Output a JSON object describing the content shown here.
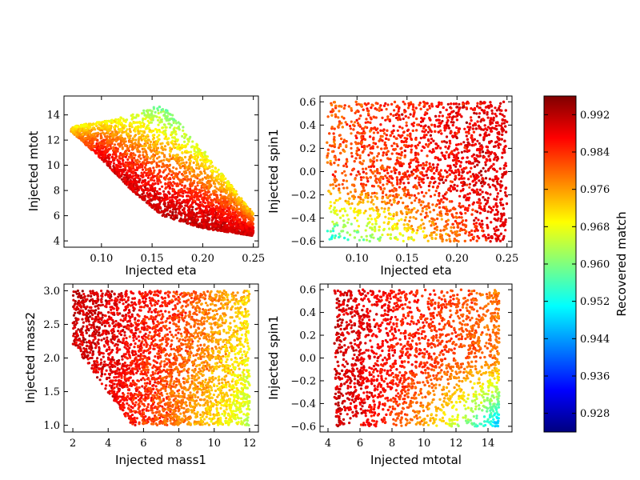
{
  "chart_data": [
    {
      "type": "scatter",
      "xlabel": "Injected eta",
      "ylabel": "Injected mtot",
      "xlim": [
        0.063,
        0.255
      ],
      "ylim": [
        3.5,
        15.5
      ],
      "xticks": [
        "0.10",
        "0.15",
        "0.20",
        "0.25"
      ],
      "xtick_values": [
        0.1,
        0.15,
        0.2,
        0.25
      ],
      "yticks": [
        "4",
        "6",
        "8",
        "10",
        "12",
        "14"
      ],
      "ytick_values": [
        4,
        6,
        8,
        10,
        12,
        14
      ],
      "regions": [
        {
          "x": 0.07,
          "y_min": 12.7,
          "y_max": 13.1,
          "match_low": 0.976,
          "match_high": 0.97
        },
        {
          "x": 0.1,
          "y_min": 10.5,
          "y_max": 13.5,
          "match_low": 0.99,
          "match_high": 0.97
        },
        {
          "x": 0.13,
          "y_min": 8.0,
          "y_max": 14.0,
          "match_low": 0.991,
          "match_high": 0.966
        },
        {
          "x": 0.16,
          "y_min": 6.0,
          "y_max": 14.9,
          "match_low": 0.992,
          "match_high": 0.958
        },
        {
          "x": 0.2,
          "y_min": 5.0,
          "y_max": 11.3,
          "match_low": 0.992,
          "match_high": 0.966
        },
        {
          "x": 0.25,
          "y_min": 4.4,
          "y_max": 6.2,
          "match_low": 0.992,
          "match_high": 0.974
        }
      ]
    },
    {
      "type": "scatter",
      "xlabel": "Injected eta",
      "ylabel": "Injected spin1",
      "xlim": [
        0.063,
        0.255
      ],
      "ylim": [
        -0.65,
        0.65
      ],
      "xticks": [
        "0.10",
        "0.15",
        "0.20",
        "0.25"
      ],
      "xtick_values": [
        0.1,
        0.15,
        0.2,
        0.25
      ],
      "yticks": [
        "−0.6",
        "−0.4",
        "−0.2",
        "0.0",
        "0.2",
        "0.4",
        "0.6"
      ],
      "ytick_values": [
        -0.6,
        -0.4,
        -0.2,
        0.0,
        0.2,
        0.4,
        0.6
      ],
      "regions": [
        {
          "x": 0.07,
          "y": 0.6,
          "match": 0.986
        },
        {
          "x": 0.07,
          "y": -0.6,
          "match": 0.956
        },
        {
          "x": 0.1,
          "y": -0.6,
          "match": 0.942
        },
        {
          "x": 0.15,
          "y": 0.6,
          "match": 0.972
        },
        {
          "x": 0.15,
          "y": -0.6,
          "match": 0.966
        },
        {
          "x": 0.25,
          "y": 0.6,
          "match": 0.99
        },
        {
          "x": 0.25,
          "y": -0.6,
          "match": 0.99
        }
      ]
    },
    {
      "type": "scatter",
      "xlabel": "Injected mass1",
      "ylabel": "Injected mass2",
      "xlim": [
        1.5,
        12.5
      ],
      "ylim": [
        0.9,
        3.1
      ],
      "xticks": [
        "2",
        "4",
        "6",
        "8",
        "10",
        "12"
      ],
      "xtick_values": [
        2,
        4,
        6,
        8,
        10,
        12
      ],
      "yticks": [
        "1.0",
        "1.5",
        "2.0",
        "2.5",
        "3.0"
      ],
      "ytick_values": [
        1.0,
        1.5,
        2.0,
        2.5,
        3.0
      ],
      "regions": [
        {
          "x": 2,
          "y": 2.8,
          "match": 0.99
        },
        {
          "x": 2,
          "y": 1.8,
          "match": 0.99
        },
        {
          "x": 6,
          "y": 1.1,
          "match": 0.99
        },
        {
          "x": 8,
          "y": 3.0,
          "match": 0.976
        },
        {
          "x": 12,
          "y": 3.0,
          "match": 0.962
        },
        {
          "x": 12,
          "y": 1.0,
          "match": 0.968
        }
      ]
    },
    {
      "type": "scatter",
      "xlabel": "Injected mtotal",
      "ylabel": "Injected spin1",
      "xlim": [
        3.5,
        15.5
      ],
      "ylim": [
        -0.65,
        0.65
      ],
      "xticks": [
        "4",
        "6",
        "8",
        "10",
        "12",
        "14"
      ],
      "xtick_values": [
        4,
        6,
        8,
        10,
        12,
        14
      ],
      "yticks": [
        "−0.6",
        "−0.4",
        "−0.2",
        "0.0",
        "0.2",
        "0.4",
        "0.6"
      ],
      "ytick_values": [
        -0.6,
        -0.4,
        -0.2,
        0.0,
        0.2,
        0.4,
        0.6
      ],
      "regions": [
        {
          "x": 5,
          "y": 0.6,
          "match": 0.992
        },
        {
          "x": 5,
          "y": -0.6,
          "match": 0.99
        },
        {
          "x": 10,
          "y": 0.6,
          "match": 0.984
        },
        {
          "x": 10,
          "y": -0.6,
          "match": 0.976
        },
        {
          "x": 13,
          "y": 0.6,
          "match": 0.976
        },
        {
          "x": 13,
          "y": -0.6,
          "match": 0.942
        },
        {
          "x": 15,
          "y": 0.6,
          "match": 0.968
        }
      ]
    }
  ],
  "colorbar": {
    "label": "Recovered match",
    "colormap": "jet",
    "range": [
      0.924,
      0.996
    ],
    "ticks": [
      "0.928",
      "0.936",
      "0.944",
      "0.952",
      "0.960",
      "0.968",
      "0.976",
      "0.984",
      "0.992"
    ],
    "tick_values": [
      0.928,
      0.936,
      0.944,
      0.952,
      0.96,
      0.968,
      0.976,
      0.984,
      0.992
    ],
    "jet_stops": [
      "#00007f",
      "#0000ff",
      "#007fff",
      "#00ffff",
      "#7fff7f",
      "#ffff00",
      "#ff7f00",
      "#ff0000",
      "#7f0000"
    ]
  }
}
